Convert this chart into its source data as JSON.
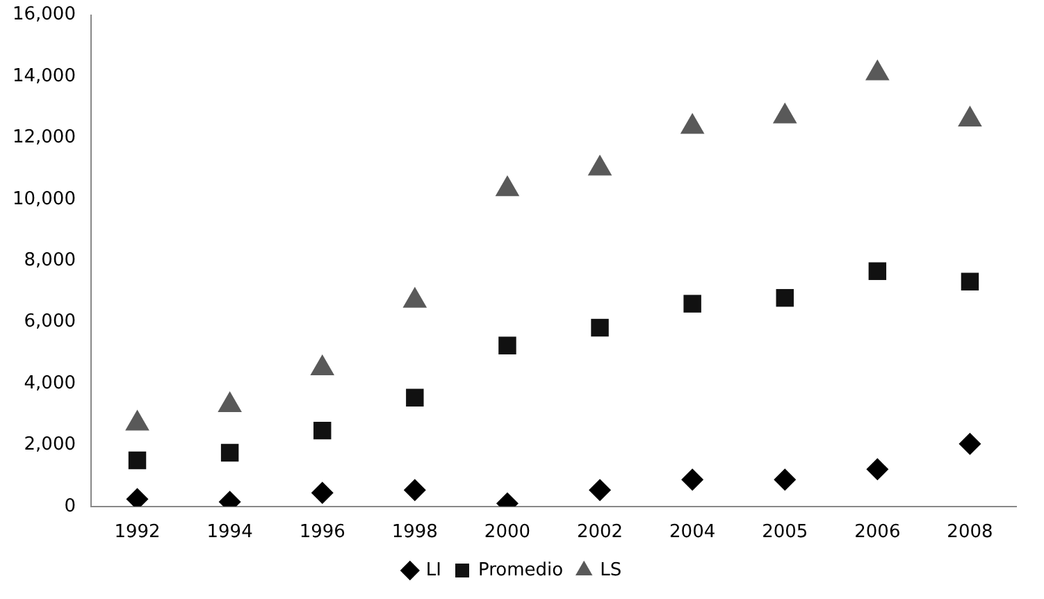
{
  "chart_data": {
    "type": "scatter",
    "categories": [
      "1992",
      "1994",
      "1996",
      "1998",
      "2000",
      "2002",
      "2004",
      "2005",
      "2006",
      "2008"
    ],
    "series": [
      {
        "name": "LI",
        "color": "#000000",
        "marker": "diamond",
        "values": [
          240,
          150,
          440,
          530,
          100,
          530,
          870,
          870,
          1210,
          2040
        ]
      },
      {
        "name": "Promedio",
        "color": "#111111",
        "marker": "square",
        "values": [
          1500,
          1750,
          2470,
          3540,
          5240,
          5820,
          6600,
          6790,
          7660,
          7320
        ]
      },
      {
        "name": "LS",
        "color": "#595959",
        "marker": "triangle",
        "values": [
          2700,
          3300,
          4500,
          6700,
          10330,
          11000,
          12360,
          12700,
          14100,
          12600
        ]
      }
    ],
    "ylim": [
      0,
      16000
    ],
    "yticks": [
      {
        "value": 0,
        "label": "0"
      },
      {
        "value": 2000,
        "label": "2,000"
      },
      {
        "value": 4000,
        "label": "4,000"
      },
      {
        "value": 6000,
        "label": "6,000"
      },
      {
        "value": 8000,
        "label": "8,000"
      },
      {
        "value": 10000,
        "label": "10,000"
      },
      {
        "value": 12000,
        "label": "12,000"
      },
      {
        "value": 14000,
        "label": "14,000"
      },
      {
        "value": 16000,
        "label": "16,000"
      }
    ],
    "grid": false,
    "legend": "bottom"
  }
}
